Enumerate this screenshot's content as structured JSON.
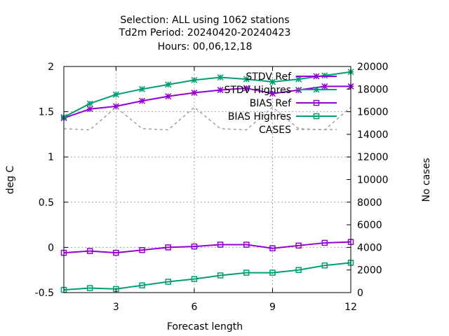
{
  "chart_data": {
    "type": "line",
    "title": [
      "Selection: ALL using  1062 stations",
      "Td2m   Period: 20240420-20240423",
      "Hours:  00,06,12,18"
    ],
    "xlabel": "Forecast length",
    "ylabel": "deg C",
    "y2label": "No cases",
    "xlim": [
      1,
      12
    ],
    "ylim": [
      -0.5,
      2
    ],
    "y2lim": [
      0,
      20000
    ],
    "xticks": [
      3,
      6,
      9,
      12
    ],
    "yticks": [
      -0.5,
      0,
      0.5,
      1,
      1.5,
      2
    ],
    "ytick_labels": [
      "-0.5",
      "0",
      "0.5",
      "1",
      "1.5",
      "2"
    ],
    "y2ticks": [
      0,
      2000,
      4000,
      6000,
      8000,
      10000,
      12000,
      14000,
      16000,
      18000,
      20000
    ],
    "grid": true,
    "legend_position": "top-right",
    "x": [
      1,
      2,
      3,
      4,
      5,
      6,
      7,
      8,
      9,
      10,
      11,
      12
    ],
    "series": [
      {
        "name": "STDV Ref",
        "color": "#9400d3",
        "marker": "star",
        "axis": "y",
        "values": [
          1.43,
          1.53,
          1.56,
          1.62,
          1.67,
          1.71,
          1.74,
          1.76,
          1.7,
          1.74,
          1.78,
          1.78
        ]
      },
      {
        "name": "STDV Highres",
        "color": "#009e73",
        "marker": "star",
        "axis": "y",
        "values": [
          1.44,
          1.59,
          1.69,
          1.75,
          1.8,
          1.85,
          1.88,
          1.86,
          1.83,
          1.86,
          1.9,
          1.94
        ]
      },
      {
        "name": "BIAS Ref",
        "color": "#9400d3",
        "marker": "square",
        "axis": "y",
        "values": [
          -0.06,
          -0.04,
          -0.06,
          -0.03,
          0.0,
          0.01,
          0.03,
          0.03,
          -0.01,
          0.02,
          0.05,
          0.06
        ]
      },
      {
        "name": "BIAS Highres",
        "color": "#009e73",
        "marker": "square",
        "axis": "y",
        "values": [
          -0.47,
          -0.45,
          -0.46,
          -0.42,
          -0.38,
          -0.35,
          -0.31,
          -0.28,
          -0.28,
          -0.25,
          -0.2,
          -0.17
        ]
      },
      {
        "name": "CASES",
        "color": "#a0a0a0",
        "marker": "none",
        "dashed": true,
        "axis": "y2",
        "values": [
          14500,
          14400,
          16400,
          14500,
          14400,
          16400,
          14500,
          14400,
          16400,
          14500,
          14400,
          16400
        ]
      }
    ]
  }
}
